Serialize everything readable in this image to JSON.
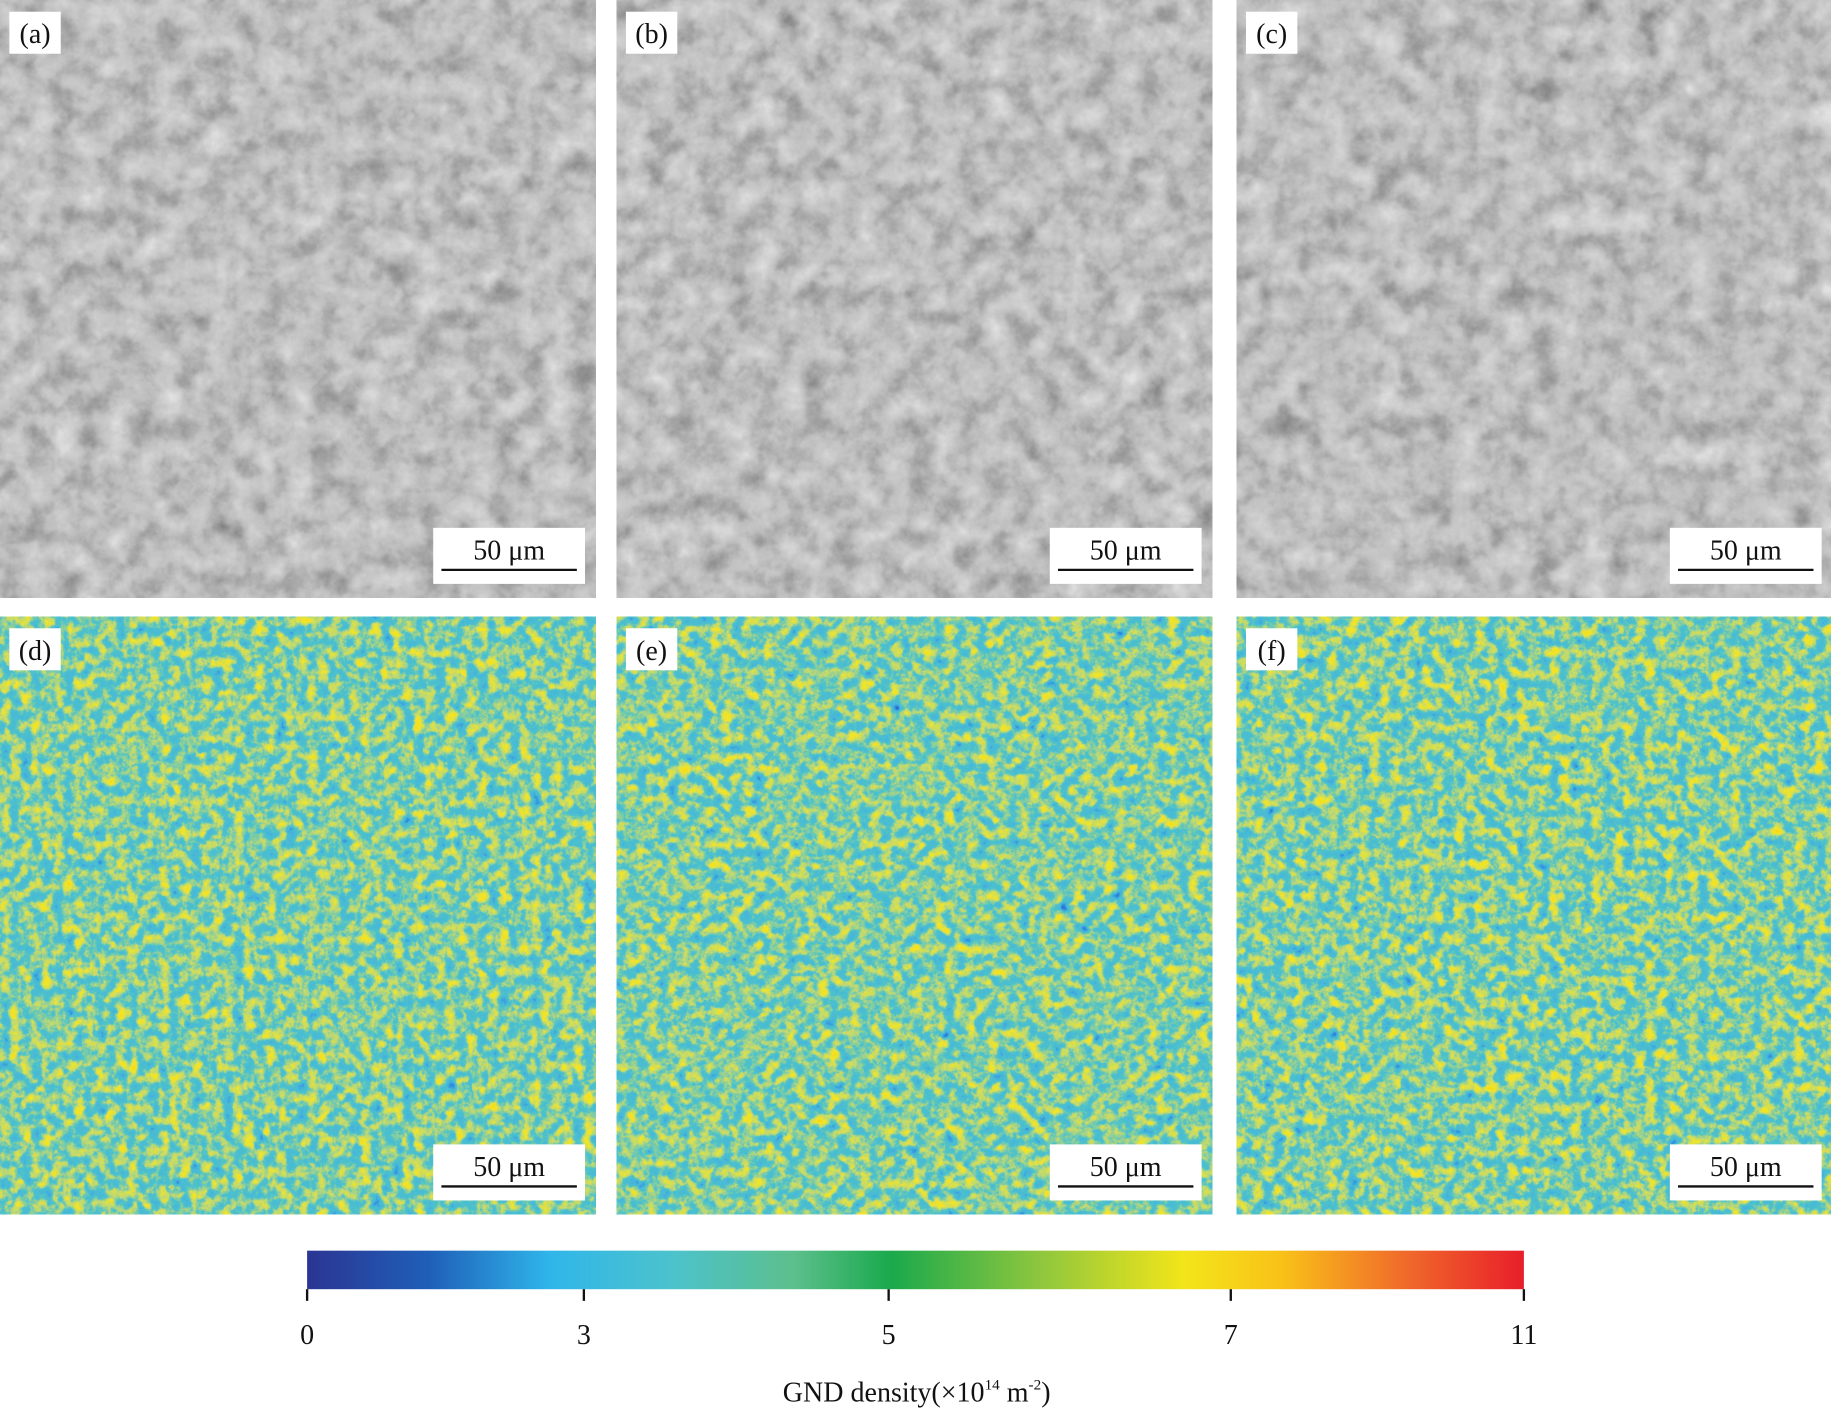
{
  "panels": [
    {
      "label": "(a)",
      "scale_bar": "50 μm"
    },
    {
      "label": "(b)",
      "scale_bar": "50 μm"
    },
    {
      "label": "(c)",
      "scale_bar": "50 μm"
    },
    {
      "label": "(d)",
      "scale_bar": "50 μm"
    },
    {
      "label": "(e)",
      "scale_bar": "50 μm"
    },
    {
      "label": "(f)",
      "scale_bar": "50 μm"
    }
  ],
  "colorbar": {
    "ticks": [
      "0",
      "3",
      "5",
      "7",
      "11"
    ],
    "label": {
      "text": "GND density(×10",
      "exponent": "14",
      "unit": " m",
      "unit_exponent": "-2",
      "close": ")"
    }
  }
}
